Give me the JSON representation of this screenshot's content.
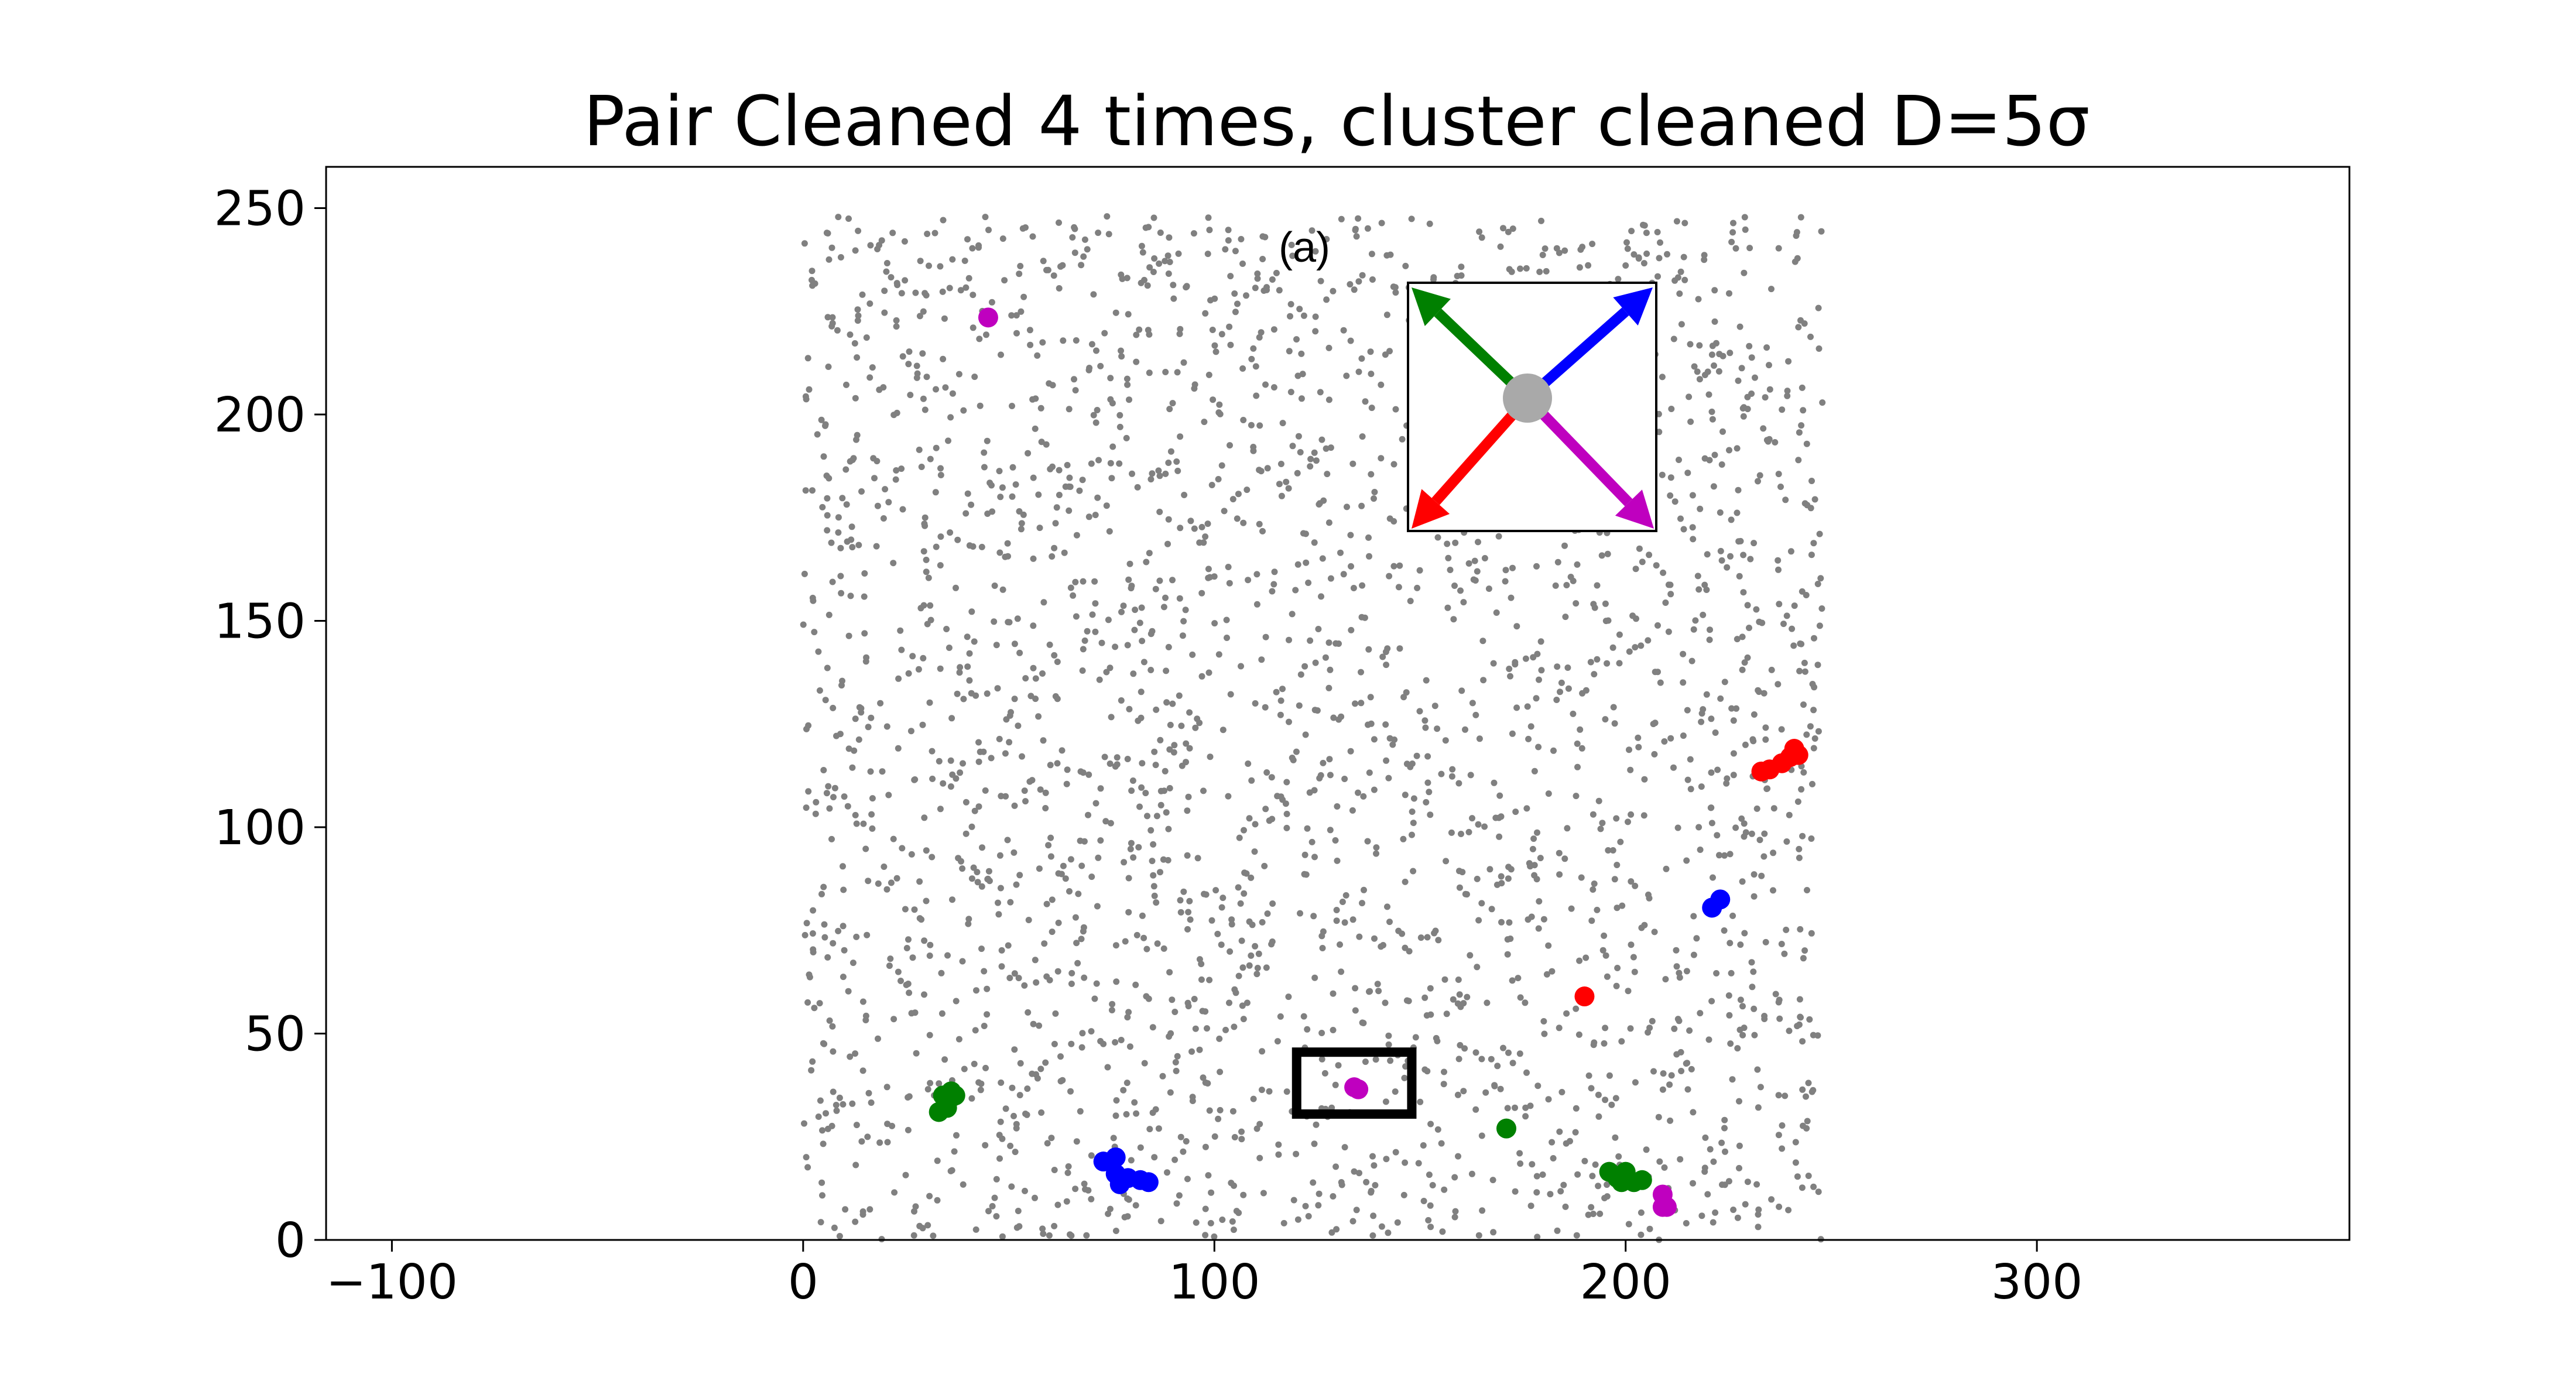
{
  "chart_data": {
    "type": "scatter",
    "title": "Pair Cleaned 4 times, cluster cleaned D=5σ",
    "xlabel": "",
    "ylabel": "",
    "xlim": [
      -116,
      376
    ],
    "ylim": [
      0,
      260
    ],
    "x_ticks": [
      -100,
      0,
      100,
      200,
      300
    ],
    "x_tick_labels": [
      "−100",
      "0",
      "100",
      "200",
      "300"
    ],
    "y_ticks": [
      0,
      50,
      100,
      150,
      200,
      250
    ],
    "y_tick_labels": [
      "0",
      "50",
      "100",
      "150",
      "200",
      "250"
    ],
    "grid": false,
    "panel_label": "(a)",
    "background": {
      "color": "#808080",
      "x_range": [
        0,
        248
      ],
      "y_range": [
        0,
        248
      ],
      "count": 2600,
      "description_free_note": ""
    },
    "series": [
      {
        "color": "#ff0000",
        "points": [
          [
            233,
            113.5
          ],
          [
            235,
            114
          ],
          [
            238,
            115.5
          ],
          [
            240,
            117
          ],
          [
            241,
            119
          ],
          [
            242,
            117.5
          ],
          [
            190,
            59
          ]
        ]
      },
      {
        "color": "#0000ff",
        "points": [
          [
            221,
            80.5
          ],
          [
            223,
            82.5
          ],
          [
            73,
            19
          ],
          [
            76,
            20
          ],
          [
            76,
            16
          ],
          [
            77,
            13.5
          ],
          [
            79,
            15
          ],
          [
            82,
            14.5
          ],
          [
            84,
            14
          ]
        ]
      },
      {
        "color": "#008000",
        "points": [
          [
            33,
            31
          ],
          [
            34,
            35
          ],
          [
            35,
            32
          ],
          [
            36,
            36
          ],
          [
            37,
            35
          ],
          [
            171,
            27
          ],
          [
            196,
            16.5
          ],
          [
            198,
            15
          ],
          [
            199,
            14
          ],
          [
            200,
            16.5
          ],
          [
            202,
            14
          ],
          [
            204,
            14.5
          ]
        ]
      },
      {
        "color": "#bf00bf",
        "points": [
          [
            45,
            223.5
          ],
          [
            134,
            37
          ],
          [
            135,
            36.5
          ],
          [
            209,
            11
          ],
          [
            209,
            8
          ],
          [
            210,
            8
          ]
        ]
      }
    ],
    "highlight_box": {
      "x": [
        120,
        148
      ],
      "y": [
        30.5,
        45.5
      ]
    },
    "inset": {
      "center_color": "#a9a9a9",
      "arrows": [
        {
          "direction": "up-right",
          "color": "#0000ff"
        },
        {
          "direction": "up-left",
          "color": "#008000"
        },
        {
          "direction": "down-left",
          "color": "#ff0000"
        },
        {
          "direction": "down-right",
          "color": "#bf00bf"
        }
      ]
    }
  }
}
